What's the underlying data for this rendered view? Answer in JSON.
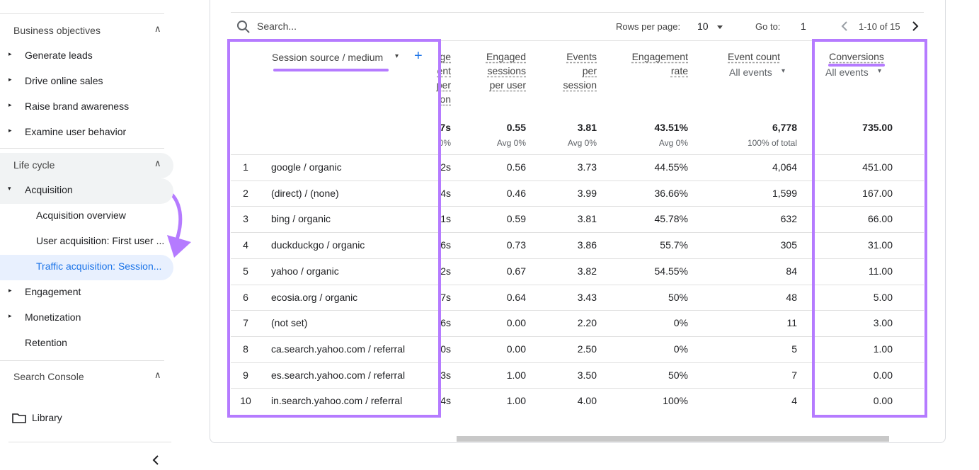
{
  "sidebar": {
    "sections": [
      {
        "title": "Business objectives",
        "items": [
          {
            "label": "Generate leads"
          },
          {
            "label": "Drive online sales"
          },
          {
            "label": "Raise brand awareness"
          },
          {
            "label": "Examine user behavior"
          }
        ]
      },
      {
        "title": "Life cycle",
        "items": [
          {
            "label": "Acquisition",
            "children": [
              "Acquisition overview",
              "User acquisition: First user ...",
              "Traffic acquisition: Session..."
            ]
          },
          {
            "label": "Engagement"
          },
          {
            "label": "Monetization"
          },
          {
            "label": "Retention"
          }
        ]
      },
      {
        "title": "Search Console",
        "items": []
      }
    ],
    "library": "Library"
  },
  "toolbar": {
    "search": "Search...",
    "rows_per_page_label": "Rows per page:",
    "rows_per_page": "10",
    "goto_label": "Go to:",
    "goto": "1",
    "range": "1-10 of 15"
  },
  "table": {
    "header": {
      "dimension": "Session source / medium",
      "partial": [
        "ge",
        "ent",
        "per",
        "on"
      ],
      "engaged": "Engaged sessions per user",
      "events": "Events per session",
      "rate": "Engagement rate",
      "count": "Event count",
      "count_filter": "All events",
      "conversions": "Conversions",
      "conversions_filter": "All events"
    },
    "totals": {
      "partial": "7s",
      "partial_sub": "0%",
      "engaged": "0.55",
      "engaged_sub": "Avg 0%",
      "events": "3.81",
      "events_sub": "Avg 0%",
      "rate": "43.51%",
      "rate_sub": "Avg 0%",
      "count": "6,778",
      "count_sub": "100% of total",
      "conversions": "735.00"
    },
    "rows": [
      [
        "1",
        "google / organic",
        "2s",
        "0.56",
        "3.73",
        "44.55%",
        "4,064",
        "451.00"
      ],
      [
        "2",
        "(direct) / (none)",
        "4s",
        "0.46",
        "3.99",
        "36.66%",
        "1,599",
        "167.00"
      ],
      [
        "3",
        "bing / organic",
        "1s",
        "0.59",
        "3.81",
        "45.78%",
        "632",
        "66.00"
      ],
      [
        "4",
        "duckduckgo / organic",
        "6s",
        "0.73",
        "3.86",
        "55.7%",
        "305",
        "31.00"
      ],
      [
        "5",
        "yahoo / organic",
        "2s",
        "0.67",
        "3.82",
        "54.55%",
        "84",
        "11.00"
      ],
      [
        "6",
        "ecosia.org / organic",
        "7s",
        "0.64",
        "3.43",
        "50%",
        "48",
        "5.00"
      ],
      [
        "7",
        "(not set)",
        "6s",
        "0.00",
        "2.20",
        "0%",
        "11",
        "3.00"
      ],
      [
        "8",
        "ca.search.yahoo.com / referral",
        "0s",
        "0.00",
        "2.50",
        "0%",
        "5",
        "1.00"
      ],
      [
        "9",
        "es.search.yahoo.com / referral",
        "3s",
        "1.00",
        "3.50",
        "50%",
        "7",
        "0.00"
      ],
      [
        "10",
        "in.search.yahoo.com / referral",
        "4s",
        "1.00",
        "4.00",
        "100%",
        "4",
        "0.00"
      ]
    ]
  }
}
